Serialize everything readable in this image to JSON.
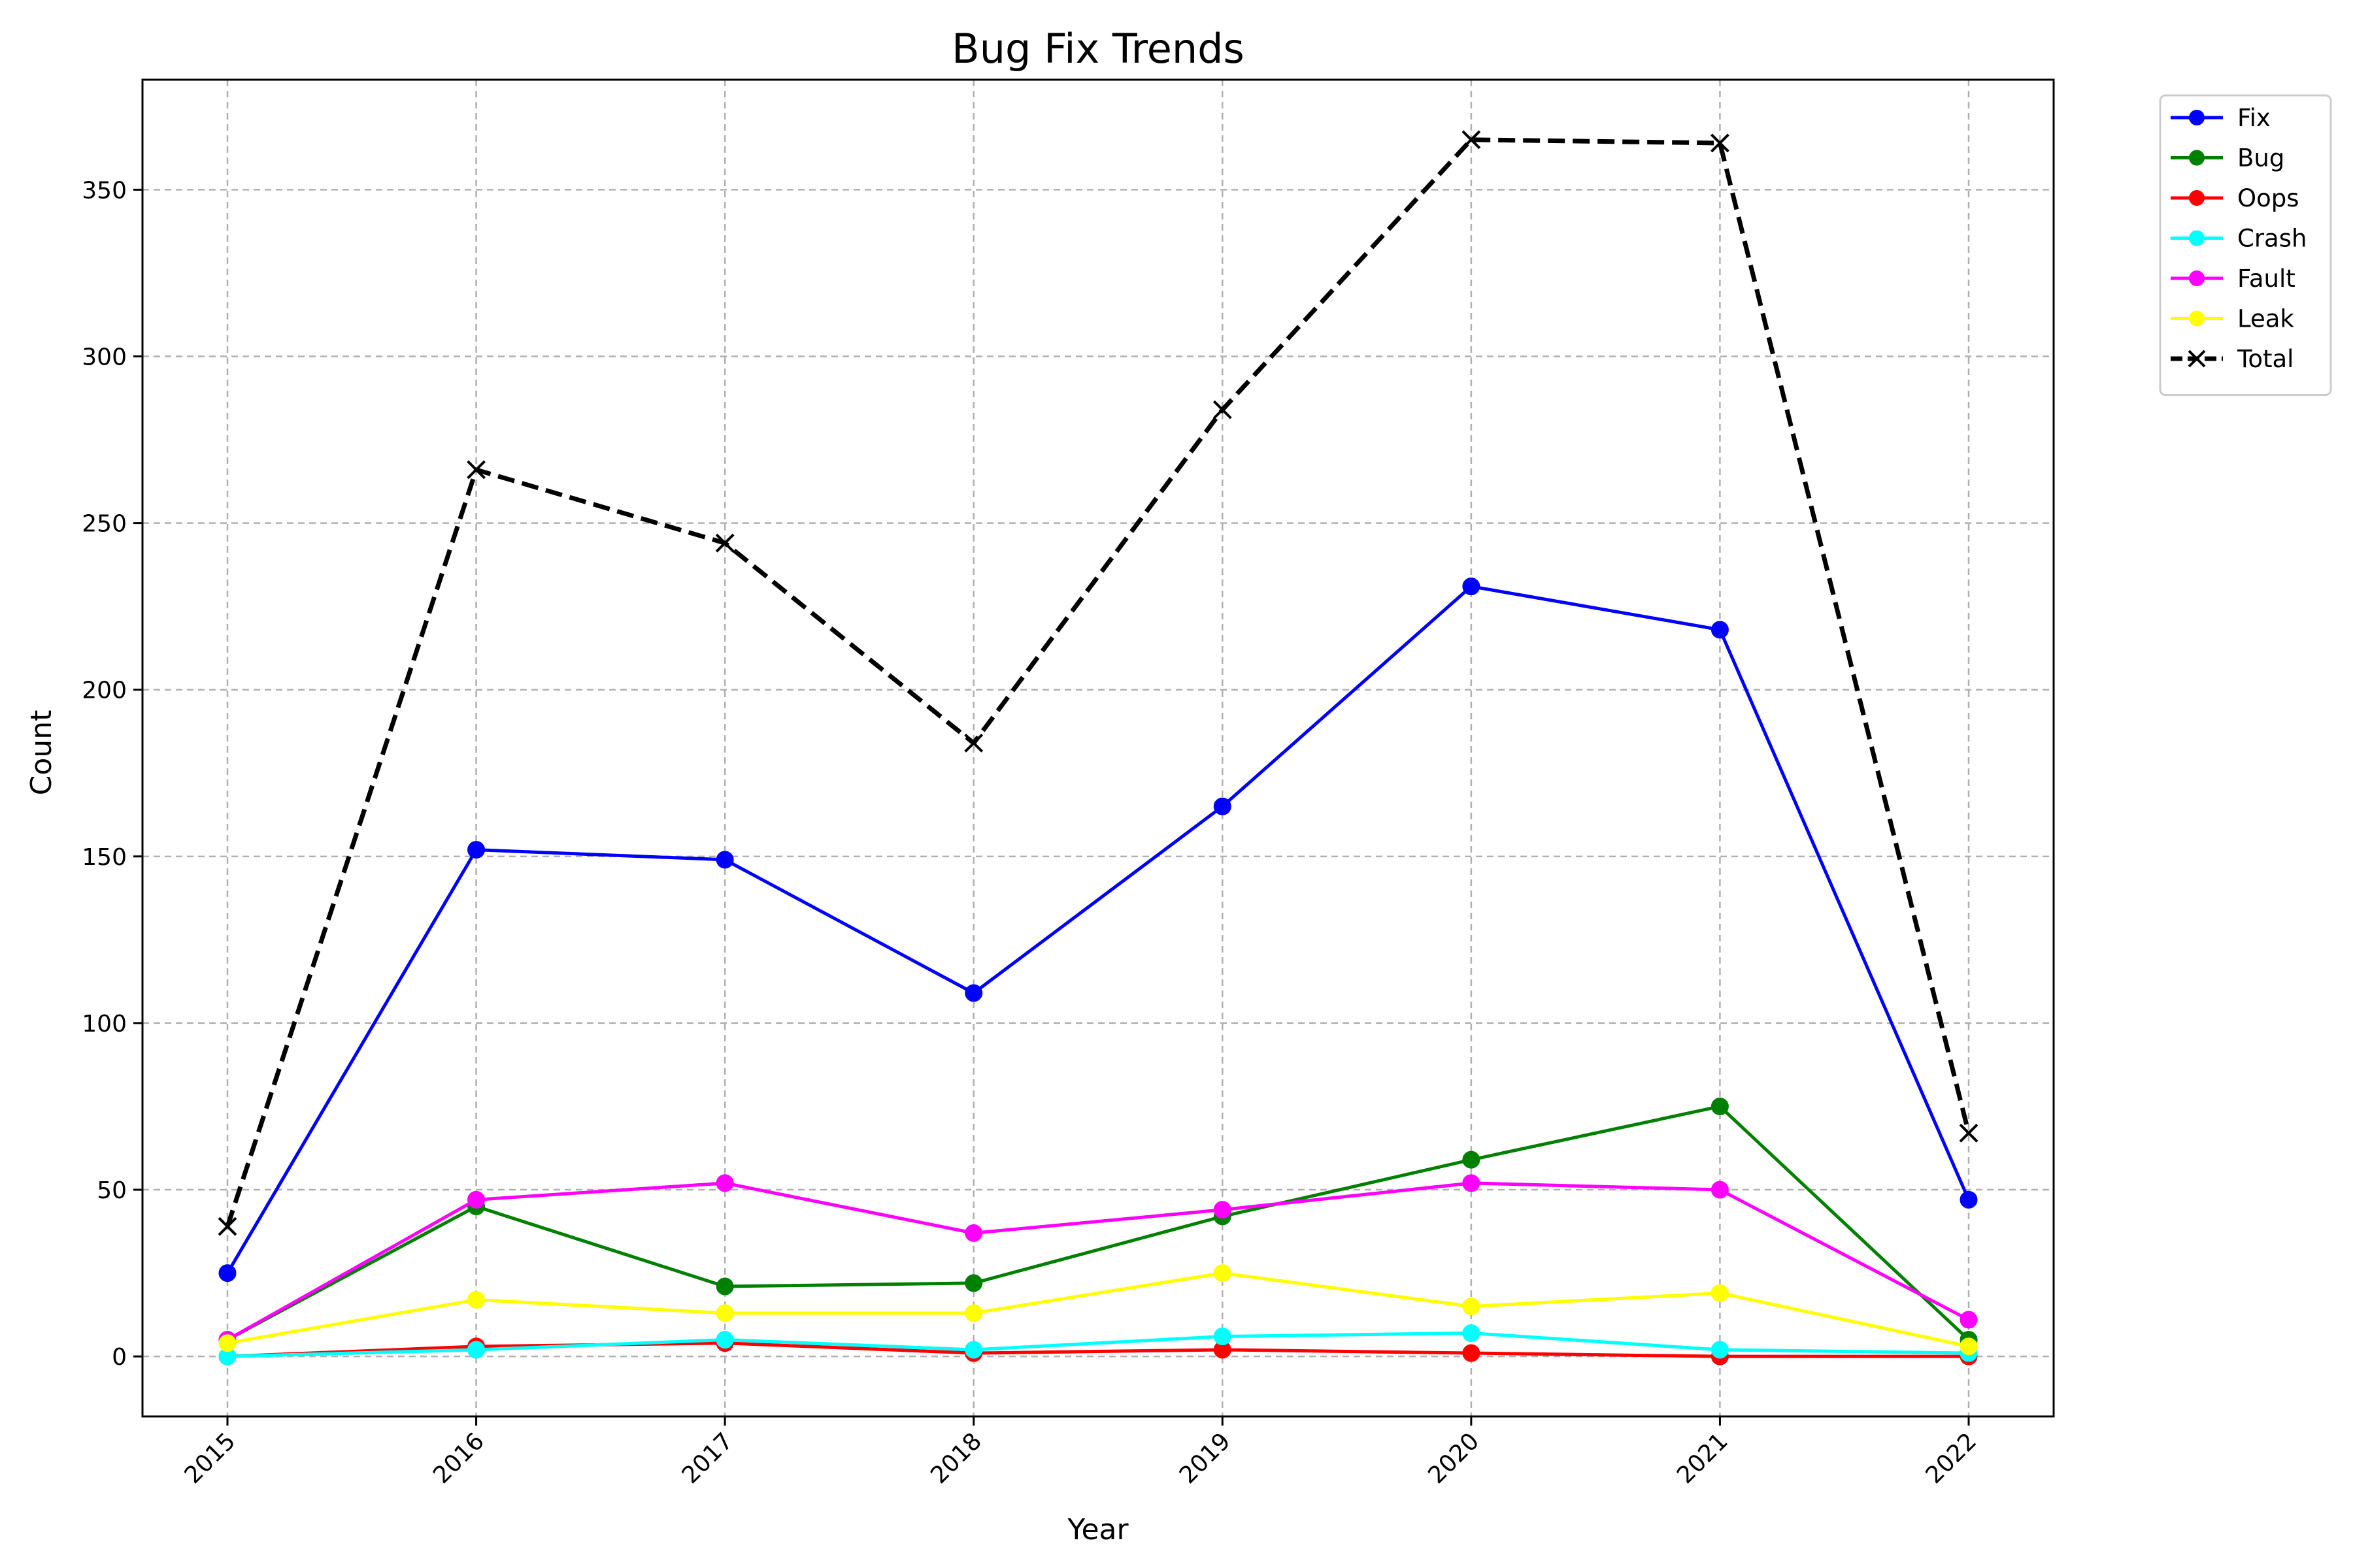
{
  "chart_data": {
    "type": "line",
    "title": "Bug Fix Trends",
    "xlabel": "Year",
    "ylabel": "Count",
    "x": [
      "2015",
      "2016",
      "2017",
      "2018",
      "2019",
      "2020",
      "2021",
      "2022"
    ],
    "ylim": [
      -18,
      383
    ],
    "yticks": [
      0,
      50,
      100,
      150,
      200,
      250,
      300,
      350
    ],
    "grid": true,
    "legend_position": "outside-top-right",
    "series": [
      {
        "name": "Fix",
        "color": "#0000ff",
        "marker": "circle",
        "style": "solid",
        "values": [
          25,
          152,
          149,
          109,
          165,
          231,
          218,
          47
        ]
      },
      {
        "name": "Bug",
        "color": "#008000",
        "marker": "circle",
        "style": "solid",
        "values": [
          5,
          45,
          21,
          22,
          42,
          59,
          75,
          5
        ]
      },
      {
        "name": "Oops",
        "color": "#ff0000",
        "marker": "circle",
        "style": "solid",
        "values": [
          0,
          3,
          4,
          1,
          2,
          1,
          0,
          0
        ]
      },
      {
        "name": "Crash",
        "color": "#00ffff",
        "marker": "circle",
        "style": "solid",
        "values": [
          0,
          2,
          5,
          2,
          6,
          7,
          2,
          1
        ]
      },
      {
        "name": "Fault",
        "color": "#ff00ff",
        "marker": "circle",
        "style": "solid",
        "values": [
          5,
          47,
          52,
          37,
          44,
          52,
          50,
          11
        ]
      },
      {
        "name": "Leak",
        "color": "#ffff00",
        "marker": "circle",
        "style": "solid",
        "values": [
          4,
          17,
          13,
          13,
          25,
          15,
          19,
          3
        ]
      },
      {
        "name": "Total",
        "color": "#000000",
        "marker": "x",
        "style": "dashed",
        "values": [
          39,
          266,
          244,
          184,
          284,
          365,
          364,
          67
        ]
      }
    ]
  }
}
